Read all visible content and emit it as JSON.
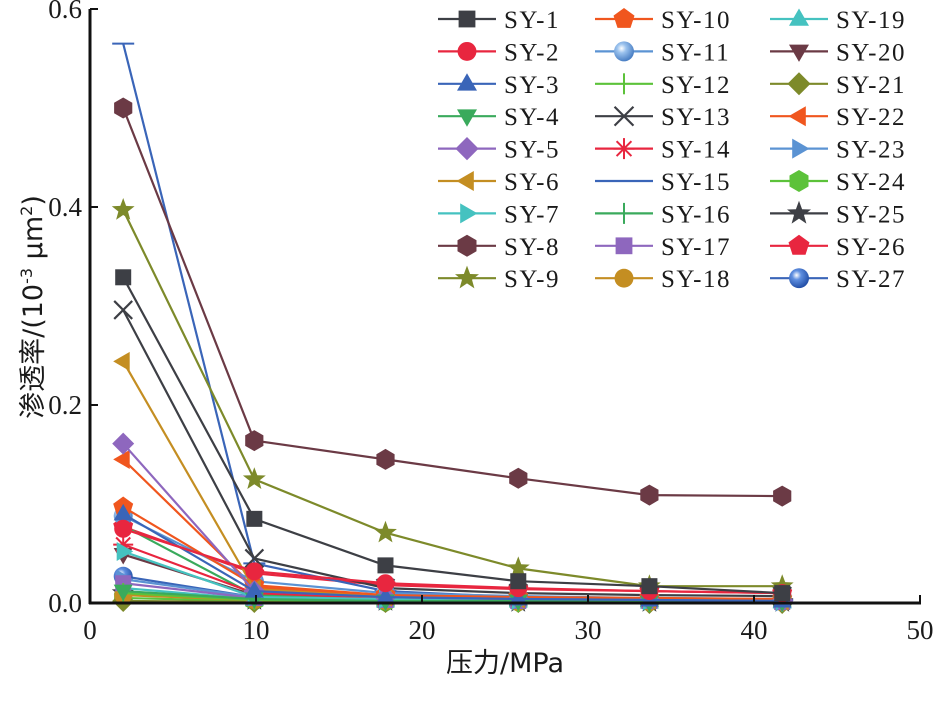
{
  "chart_data": {
    "type": "line",
    "title": "",
    "xlabel": "压力/MPa",
    "ylabel": "渗透率/(10⁻³ μm²)",
    "ylabel_parts": {
      "main": "渗透率/(10",
      "exp1": "-3",
      "unit": " μm",
      "exp2": "2",
      "close": ")"
    },
    "xlim": [
      0,
      50
    ],
    "ylim": [
      0,
      0.6
    ],
    "xticks": [
      0,
      10,
      20,
      30,
      40,
      50
    ],
    "xtick_labels": [
      "0",
      "10",
      "20",
      "30",
      "40",
      "50"
    ],
    "yticks": [
      0.0,
      0.2,
      0.4,
      0.6
    ],
    "ytick_labels": [
      "0.0",
      "0.2",
      "0.4",
      "0.6"
    ],
    "grid": false,
    "legend_position": "top-right",
    "x": [
      2.0,
      9.9,
      17.8,
      25.8,
      33.7,
      41.7
    ],
    "series": [
      {
        "name": "SY-1",
        "color": "#3d3f45",
        "marker": "square",
        "values": [
          0.329,
          0.085,
          0.038,
          0.022,
          0.017,
          0.01
        ]
      },
      {
        "name": "SY-2",
        "color": "#e8263f",
        "marker": "circle",
        "values": [
          0.075,
          0.032,
          0.02,
          0.015,
          0.012,
          0.01
        ]
      },
      {
        "name": "SY-3",
        "color": "#3a65b8",
        "marker": "triangle-up",
        "values": [
          0.09,
          0.012,
          0.006,
          0.004,
          0.003,
          0.002
        ]
      },
      {
        "name": "SY-4",
        "color": "#3aaa5c",
        "marker": "triangle-down",
        "values": [
          0.012,
          0.004,
          0.002,
          0.002,
          0.001,
          0.001
        ]
      },
      {
        "name": "SY-5",
        "color": "#8e67be",
        "marker": "diamond",
        "values": [
          0.161,
          0.012,
          0.006,
          0.004,
          0.003,
          0.002
        ]
      },
      {
        "name": "SY-6",
        "color": "#c48e22",
        "marker": "triangle-left",
        "values": [
          0.244,
          0.014,
          0.006,
          0.004,
          0.003,
          0.002
        ]
      },
      {
        "name": "SY-7",
        "color": "#45c2c0",
        "marker": "triangle-right",
        "values": [
          0.052,
          0.006,
          0.004,
          0.003,
          0.002,
          0.002
        ]
      },
      {
        "name": "SY-8",
        "color": "#6b3a45",
        "marker": "hexagon",
        "values": [
          0.5,
          0.164,
          0.145,
          0.126,
          0.109,
          0.108
        ]
      },
      {
        "name": "SY-9",
        "color": "#7d8a2a",
        "marker": "star",
        "values": [
          0.397,
          0.125,
          0.071,
          0.035,
          0.017,
          0.017
        ]
      },
      {
        "name": "SY-10",
        "color": "#f0561e",
        "marker": "pentagon",
        "values": [
          0.097,
          0.018,
          0.008,
          0.006,
          0.005,
          0.004
        ]
      },
      {
        "name": "SY-11",
        "color": "#5b93d3",
        "marker": "ball",
        "values": [
          0.088,
          0.022,
          0.01,
          0.007,
          0.005,
          0.004
        ]
      },
      {
        "name": "SY-12",
        "color": "#5cc23a",
        "marker": "vline",
        "values": [
          0.01,
          0.003,
          0.002,
          0.001,
          0.001,
          0.001
        ]
      },
      {
        "name": "SY-13",
        "color": "#3d3f45",
        "marker": "x",
        "values": [
          0.296,
          0.045,
          0.015,
          0.01,
          0.008,
          0.007
        ]
      },
      {
        "name": "SY-14",
        "color": "#e8263f",
        "marker": "asterisk",
        "values": [
          0.059,
          0.01,
          0.005,
          0.004,
          0.003,
          0.003
        ]
      },
      {
        "name": "SY-15",
        "color": "#3a65b8",
        "marker": "hline",
        "values": [
          0.565,
          0.04,
          0.012,
          0.006,
          0.004,
          0.003
        ]
      },
      {
        "name": "SY-16",
        "color": "#3aaa5c",
        "marker": "vline",
        "values": [
          0.078,
          0.008,
          0.004,
          0.003,
          0.002,
          0.002
        ]
      },
      {
        "name": "SY-17",
        "color": "#8e67be",
        "marker": "square",
        "values": [
          0.02,
          0.005,
          0.003,
          0.002,
          0.002,
          0.001
        ]
      },
      {
        "name": "SY-18",
        "color": "#c48e22",
        "marker": "circle",
        "values": [
          0.008,
          0.003,
          0.002,
          0.001,
          0.001,
          0.001
        ]
      },
      {
        "name": "SY-19",
        "color": "#45c2c0",
        "marker": "triangle-up",
        "values": [
          0.015,
          0.004,
          0.002,
          0.002,
          0.001,
          0.001
        ]
      },
      {
        "name": "SY-20",
        "color": "#6b3a45",
        "marker": "triangle-down",
        "values": [
          0.049,
          0.008,
          0.004,
          0.003,
          0.002,
          0.002
        ]
      },
      {
        "name": "SY-21",
        "color": "#7d8a2a",
        "marker": "diamond",
        "values": [
          0.002,
          0.001,
          0.001,
          0.001,
          0.0,
          0.0
        ]
      },
      {
        "name": "SY-22",
        "color": "#f0561e",
        "marker": "triangle-left",
        "values": [
          0.145,
          0.016,
          0.007,
          0.005,
          0.004,
          0.003
        ]
      },
      {
        "name": "SY-23",
        "color": "#5b93d3",
        "marker": "triangle-right",
        "values": [
          0.024,
          0.006,
          0.003,
          0.002,
          0.002,
          0.001
        ]
      },
      {
        "name": "SY-24",
        "color": "#5cc23a",
        "marker": "hexagon",
        "values": [
          0.005,
          0.002,
          0.001,
          0.001,
          0.001,
          0.001
        ]
      },
      {
        "name": "SY-25",
        "color": "#3d3f45",
        "marker": "star",
        "values": [
          0.01,
          0.003,
          0.002,
          0.001,
          0.001,
          0.001
        ]
      },
      {
        "name": "SY-26",
        "color": "#e8263f",
        "marker": "pentagon",
        "values": [
          0.077,
          0.03,
          0.018,
          0.014,
          0.012,
          0.01
        ]
      },
      {
        "name": "SY-27",
        "color": "#3a65b8",
        "marker": "ball",
        "values": [
          0.027,
          0.006,
          0.004,
          0.003,
          0.002,
          0.002
        ]
      }
    ]
  }
}
